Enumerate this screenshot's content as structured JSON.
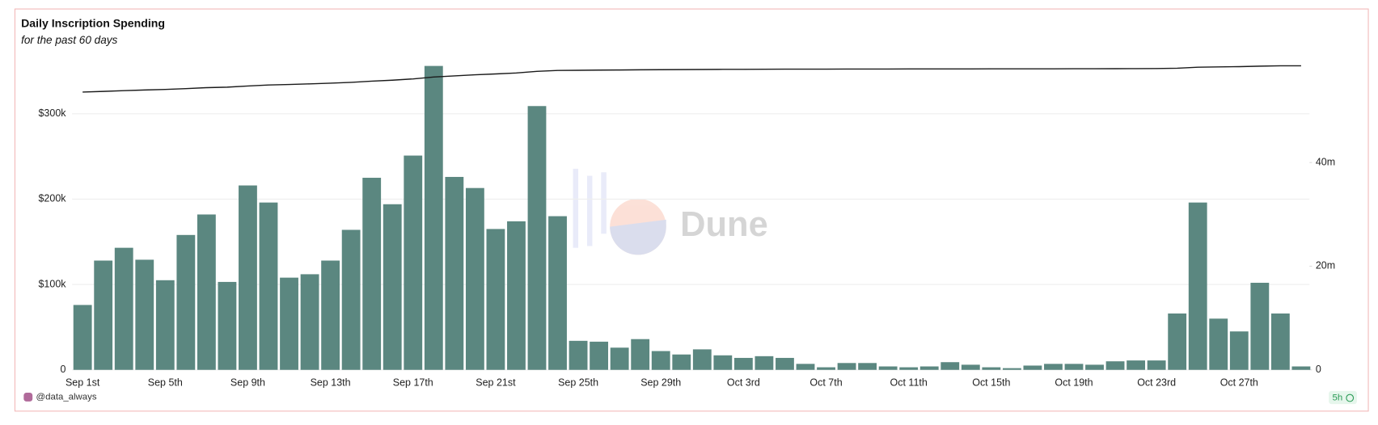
{
  "chart_data": {
    "type": "bar",
    "title": "Daily Inscription Spending",
    "subtitle": "for the past 60 days",
    "watermark": "Dune",
    "author": "@data_always",
    "age": "5h",
    "categories": [
      "Sep 1st",
      null,
      null,
      null,
      "Sep 5th",
      null,
      null,
      null,
      "Sep 9th",
      null,
      null,
      null,
      "Sep 13th",
      null,
      null,
      null,
      "Sep 17th",
      null,
      null,
      null,
      "Sep 21st",
      null,
      null,
      null,
      "Sep 25th",
      null,
      null,
      null,
      "Sep 29th",
      null,
      null,
      null,
      "Oct 3rd",
      null,
      null,
      null,
      "Oct 7th",
      null,
      null,
      null,
      "Oct 11th",
      null,
      null,
      null,
      "Oct 15th",
      null,
      null,
      null,
      "Oct 19th",
      null,
      null,
      null,
      "Oct 23rd",
      null,
      null,
      null,
      "Oct 27th",
      null,
      null,
      null
    ],
    "series": [
      {
        "type": "bar",
        "axis": "y",
        "color": "#5b8780",
        "values": [
          76000,
          128000,
          143000,
          129000,
          105000,
          158000,
          182000,
          103000,
          216000,
          196000,
          108000,
          112000,
          128000,
          164000,
          225000,
          194000,
          251000,
          356000,
          226000,
          213000,
          165000,
          174000,
          309000,
          180000,
          34000,
          33000,
          26000,
          36000,
          22000,
          18000,
          24000,
          17000,
          14000,
          16000,
          14000,
          7000,
          3000,
          8000,
          8000,
          4000,
          3000,
          4000,
          9000,
          6000,
          3000,
          2000,
          5000,
          7000,
          7000,
          6000,
          10000,
          11000,
          11000,
          66000,
          196000,
          60000,
          45000,
          102000,
          66000,
          4000
        ]
      },
      {
        "type": "line",
        "axis": "y2",
        "color": "#1a1a1a",
        "values": [
          53.6,
          53.73,
          53.87,
          54.0,
          54.11,
          54.26,
          54.45,
          54.55,
          54.77,
          54.96,
          55.07,
          55.18,
          55.31,
          55.47,
          55.7,
          55.89,
          56.14,
          56.5,
          56.72,
          56.94,
          57.1,
          57.28,
          57.59,
          57.77,
          57.8,
          57.84,
          57.86,
          57.9,
          57.92,
          57.94,
          57.96,
          57.98,
          57.99,
          58.01,
          58.02,
          58.03,
          58.03,
          58.04,
          58.05,
          58.05,
          58.06,
          58.06,
          58.07,
          58.07,
          58.08,
          58.08,
          58.08,
          58.09,
          58.1,
          58.1,
          58.11,
          58.13,
          58.14,
          58.2,
          58.4,
          58.46,
          58.5,
          58.6,
          58.67,
          58.67
        ]
      }
    ],
    "ylim": [
      0,
      360000
    ],
    "yticks": [
      0,
      {
        "value": 100000,
        "label": "$100k"
      },
      {
        "value": 200000,
        "label": "$200k"
      },
      {
        "value": 300000,
        "label": "$300k"
      }
    ],
    "y2lim": [
      0,
      59.3
    ],
    "y2ticks": [
      0,
      {
        "value": 20,
        "label": "20m"
      },
      {
        "value": 40,
        "label": "40m"
      }
    ],
    "grid": true
  }
}
